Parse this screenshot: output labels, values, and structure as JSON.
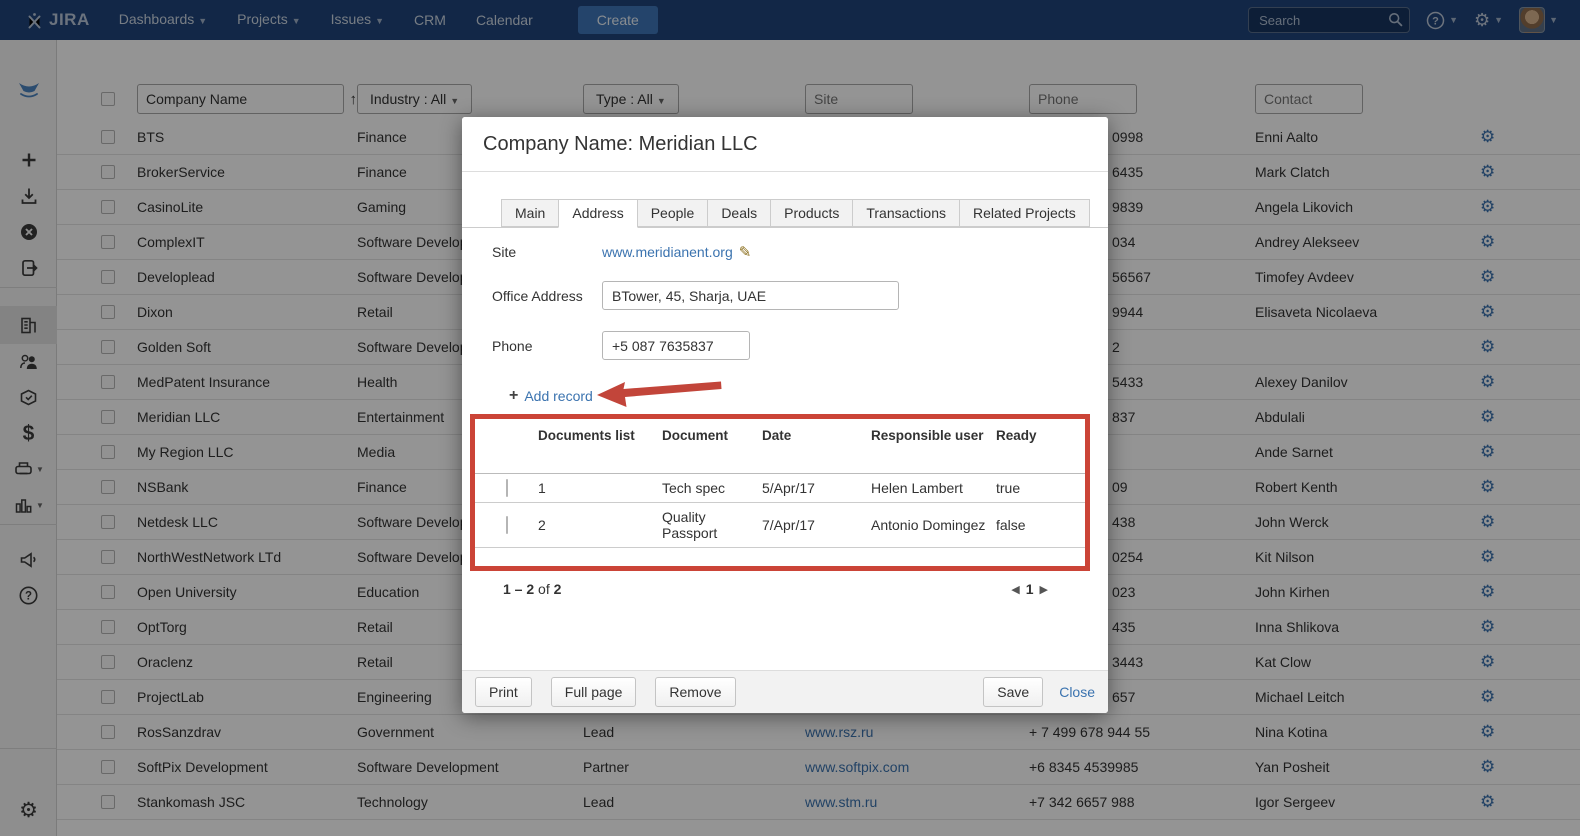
{
  "nav": {
    "brand": "JIRA",
    "items": [
      {
        "label": "Dashboards",
        "caret": true
      },
      {
        "label": "Projects",
        "caret": true
      },
      {
        "label": "Issues",
        "caret": true
      },
      {
        "label": "CRM",
        "caret": false
      },
      {
        "label": "Calendar",
        "caret": false
      }
    ],
    "create_label": "Create",
    "search_placeholder": "Search"
  },
  "sidebar": {
    "icons": [
      "crm-logo",
      "add",
      "import",
      "cancel",
      "export",
      "companies",
      "contacts",
      "products",
      "deals",
      "print",
      "reports",
      "feedback",
      "help",
      "settings",
      "expand"
    ],
    "active": "companies"
  },
  "filters": {
    "company_name_value": "Company Name",
    "sort_arrow": "↑",
    "industry_label": "Industry : All",
    "type_label": "Type : All",
    "site_placeholder": "Site",
    "phone_placeholder": "Phone",
    "contact_placeholder": "Contact"
  },
  "table": {
    "rows": [
      {
        "company": "BTS",
        "industry": "Finance",
        "type": "",
        "site": "",
        "phone": "0998",
        "contact": "Enni Aalto"
      },
      {
        "company": "BrokerService",
        "industry": "Finance",
        "type": "",
        "site": "",
        "phone": "6435",
        "contact": "Mark Clatch"
      },
      {
        "company": "CasinoLite",
        "industry": "Gaming",
        "type": "",
        "site": "",
        "phone": "9839",
        "contact": "Angela Likovich"
      },
      {
        "company": "ComplexIT",
        "industry": "Software Development",
        "type": "",
        "site": "",
        "phone": "034",
        "contact": "Andrey Alekseev"
      },
      {
        "company": "Developlead",
        "industry": "Software Development",
        "type": "",
        "site": "",
        "phone": "56567",
        "contact": "Timofey Avdeev"
      },
      {
        "company": "Dixon",
        "industry": "Retail",
        "type": "",
        "site": "",
        "phone": "9944",
        "contact": "Elisaveta Nicolaeva"
      },
      {
        "company": "Golden Soft",
        "industry": "Software Development",
        "type": "",
        "site": "",
        "phone": "2",
        "contact": ""
      },
      {
        "company": "MedPatent Insurance",
        "industry": "Health",
        "type": "",
        "site": "",
        "phone": "5433",
        "contact": "Alexey Danilov"
      },
      {
        "company": "Meridian LLC",
        "industry": "Entertainment",
        "type": "",
        "site": "",
        "phone": "837",
        "contact": "Abdulali"
      },
      {
        "company": "My Region LLC",
        "industry": "Media",
        "type": "",
        "site": "",
        "phone": "",
        "contact": "Ande Sarnet"
      },
      {
        "company": "NSBank",
        "industry": "Finance",
        "type": "",
        "site": "",
        "phone": "09",
        "contact": "Robert Kenth"
      },
      {
        "company": "Netdesk LLC",
        "industry": "Software Development",
        "type": "",
        "site": "",
        "phone": "438",
        "contact": "John Werck"
      },
      {
        "company": "NorthWestNetwork LTd",
        "industry": "Software Development",
        "type": "",
        "site": "",
        "phone": "0254",
        "contact": "Kit Nilson"
      },
      {
        "company": "Open University",
        "industry": "Education",
        "type": "",
        "site": "",
        "phone": "023",
        "contact": "John Kirhen"
      },
      {
        "company": "OptTorg",
        "industry": "Retail",
        "type": "",
        "site": "",
        "phone": "435",
        "contact": "Inna Shlikova"
      },
      {
        "company": "Oraclenz",
        "industry": "Retail",
        "type": "",
        "site": "",
        "phone": "3443",
        "contact": "Kat Clow"
      },
      {
        "company": "ProjectLab",
        "industry": "Engineering",
        "type": "",
        "site": "",
        "phone": "657",
        "contact": "Michael Leitch"
      },
      {
        "company": "RosSanzdrav",
        "industry": "Government",
        "type": "Lead",
        "site": "www.rsz.ru",
        "phone": "+ 7 499 678 944 55",
        "contact": "Nina Kotina"
      },
      {
        "company": "SoftPix Development",
        "industry": "Software Development",
        "type": "Partner",
        "site": "www.softpix.com",
        "phone": "+6 8345 4539985",
        "contact": "Yan Posheit"
      },
      {
        "company": "Stankomash JSC",
        "industry": "Technology",
        "type": "Lead",
        "site": "www.stm.ru",
        "phone": "+7 342 6657 988",
        "contact": "Igor Sergeev"
      }
    ]
  },
  "modal": {
    "title": "Company Name: Meridian LLC",
    "tabs": [
      "Main",
      "Address",
      "People",
      "Deals",
      "Products",
      "Transactions",
      "Related Projects"
    ],
    "active_tab": "Address",
    "fields": {
      "site_label": "Site",
      "site_value": "www.meridianent.org",
      "office_label": "Office Address",
      "office_value": "BTower, 45, Sharja, UAE",
      "phone_label": "Phone",
      "phone_value": "+5 087 7635837"
    },
    "add_record_label": "Add record",
    "documents": {
      "columns": [
        "Documents list",
        "Document",
        "Date",
        "Responsible user",
        "Ready"
      ],
      "rows": [
        {
          "num": "1",
          "document": "Tech spec",
          "date": "5/Apr/17",
          "user": "Helen Lambert",
          "ready": "true"
        },
        {
          "num": "2",
          "document": "Quality Passport",
          "date": "7/Apr/17",
          "user": "Antonio Domingez",
          "ready": "false"
        }
      ]
    },
    "pagination": {
      "range_start_end": "1 – 2",
      "of_word": "of",
      "total": "2",
      "page": "1",
      "prev": "◀",
      "next": "▶"
    },
    "footer": {
      "print": "Print",
      "full_page": "Full page",
      "remove": "Remove",
      "save": "Save",
      "close": "Close"
    }
  },
  "colors": {
    "nav_bg": "#1f447a",
    "accent_blue": "#3b73af",
    "annotation_red": "#cb4437"
  }
}
